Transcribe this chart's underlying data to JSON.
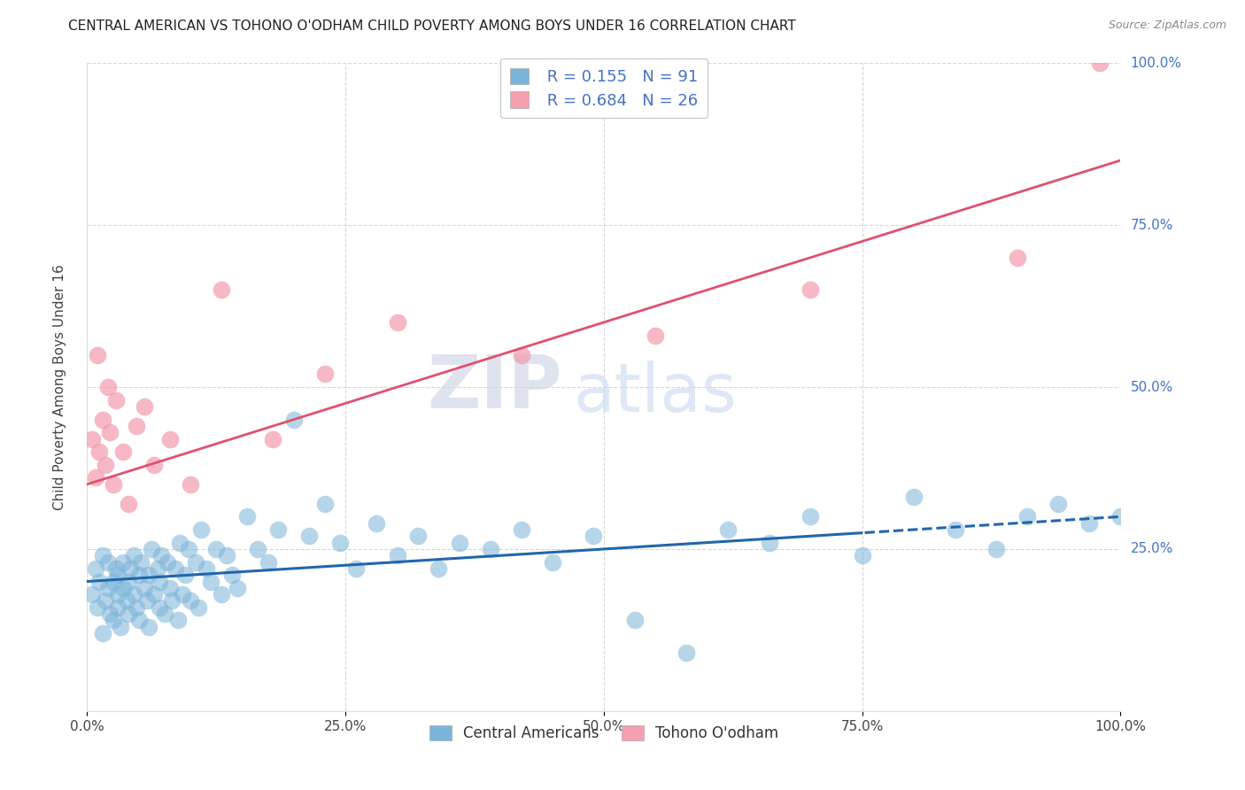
{
  "title": "CENTRAL AMERICAN VS TOHONO O'ODHAM CHILD POVERTY AMONG BOYS UNDER 16 CORRELATION CHART",
  "source": "Source: ZipAtlas.com",
  "ylabel": "Child Poverty Among Boys Under 16",
  "blue_R": 0.155,
  "blue_N": 91,
  "pink_R": 0.684,
  "pink_N": 26,
  "blue_color": "#7ab4d8",
  "pink_color": "#f4a0b0",
  "blue_line_color": "#2166ac",
  "pink_line_color": "#e05070",
  "watermark_zip": "ZIP",
  "watermark_atlas": "atlas",
  "background_color": "#ffffff",
  "title_color": "#222222",
  "source_color": "#888888",
  "ylabel_color": "#444444",
  "tick_color": "#4472c4",
  "legend_text_color": "#4472c4",
  "blue_line_intercept": 0.2,
  "blue_line_slope": 0.1,
  "pink_line_intercept": 0.35,
  "pink_line_slope": 0.5,
  "blue_x": [
    0.005,
    0.008,
    0.01,
    0.012,
    0.015,
    0.015,
    0.018,
    0.02,
    0.02,
    0.022,
    0.025,
    0.025,
    0.028,
    0.03,
    0.03,
    0.03,
    0.032,
    0.035,
    0.035,
    0.038,
    0.04,
    0.04,
    0.042,
    0.045,
    0.045,
    0.048,
    0.05,
    0.05,
    0.052,
    0.055,
    0.058,
    0.06,
    0.06,
    0.062,
    0.065,
    0.068,
    0.07,
    0.07,
    0.072,
    0.075,
    0.078,
    0.08,
    0.082,
    0.085,
    0.088,
    0.09,
    0.092,
    0.095,
    0.098,
    0.1,
    0.105,
    0.108,
    0.11,
    0.115,
    0.12,
    0.125,
    0.13,
    0.135,
    0.14,
    0.145,
    0.155,
    0.165,
    0.175,
    0.185,
    0.2,
    0.215,
    0.23,
    0.245,
    0.26,
    0.28,
    0.3,
    0.32,
    0.34,
    0.36,
    0.39,
    0.42,
    0.45,
    0.49,
    0.53,
    0.58,
    0.62,
    0.66,
    0.7,
    0.75,
    0.8,
    0.84,
    0.88,
    0.91,
    0.94,
    0.97,
    1.0
  ],
  "blue_y": [
    0.18,
    0.22,
    0.16,
    0.2,
    0.12,
    0.24,
    0.17,
    0.19,
    0.23,
    0.15,
    0.2,
    0.14,
    0.22,
    0.18,
    0.16,
    0.21,
    0.13,
    0.19,
    0.23,
    0.17,
    0.2,
    0.15,
    0.22,
    0.18,
    0.24,
    0.16,
    0.21,
    0.14,
    0.23,
    0.19,
    0.17,
    0.21,
    0.13,
    0.25,
    0.18,
    0.22,
    0.16,
    0.2,
    0.24,
    0.15,
    0.23,
    0.19,
    0.17,
    0.22,
    0.14,
    0.26,
    0.18,
    0.21,
    0.25,
    0.17,
    0.23,
    0.16,
    0.28,
    0.22,
    0.2,
    0.25,
    0.18,
    0.24,
    0.21,
    0.19,
    0.3,
    0.25,
    0.23,
    0.28,
    0.45,
    0.27,
    0.32,
    0.26,
    0.22,
    0.29,
    0.24,
    0.27,
    0.22,
    0.26,
    0.25,
    0.28,
    0.23,
    0.27,
    0.14,
    0.09,
    0.28,
    0.26,
    0.3,
    0.24,
    0.33,
    0.28,
    0.25,
    0.3,
    0.32,
    0.29,
    0.3
  ],
  "pink_x": [
    0.005,
    0.008,
    0.01,
    0.012,
    0.015,
    0.018,
    0.02,
    0.022,
    0.025,
    0.028,
    0.035,
    0.04,
    0.048,
    0.055,
    0.065,
    0.08,
    0.1,
    0.13,
    0.18,
    0.23,
    0.3,
    0.42,
    0.55,
    0.7,
    0.9,
    0.98
  ],
  "pink_y": [
    0.42,
    0.36,
    0.55,
    0.4,
    0.45,
    0.38,
    0.5,
    0.43,
    0.35,
    0.48,
    0.4,
    0.32,
    0.44,
    0.47,
    0.38,
    0.42,
    0.35,
    0.65,
    0.42,
    0.52,
    0.6,
    0.55,
    0.58,
    0.65,
    0.7,
    1.0
  ]
}
